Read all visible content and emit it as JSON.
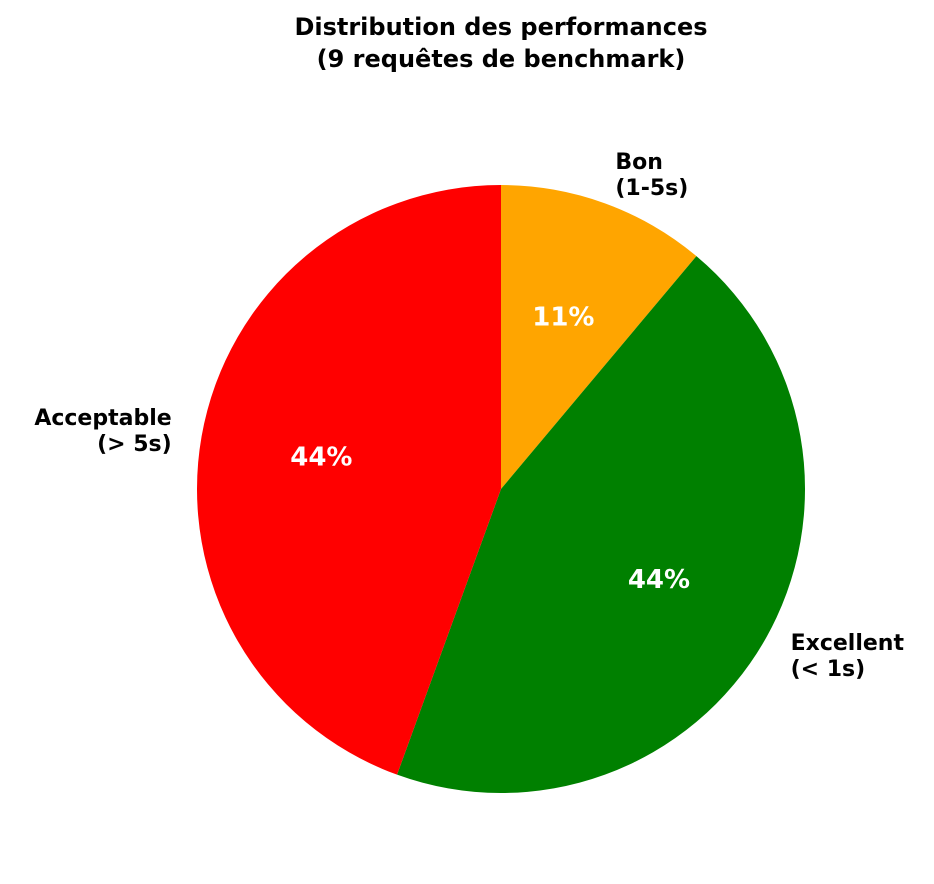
{
  "chart_data": {
    "type": "pie",
    "title_lines": [
      "Distribution des performances",
      "(9 requêtes de benchmark)"
    ],
    "slices": [
      {
        "label_lines": [
          "Bon",
          "(1-5s)"
        ],
        "count": 1,
        "pct_label": "11%",
        "color": "#ffa500"
      },
      {
        "label_lines": [
          "Excellent",
          "(< 1s)"
        ],
        "count": 4,
        "pct_label": "44%",
        "color": "#008000"
      },
      {
        "label_lines": [
          "Acceptable",
          "(> 5s)"
        ],
        "count": 4,
        "pct_label": "44%",
        "color": "#ff0000"
      }
    ],
    "start_angle_deg": 90,
    "direction": "clockwise"
  }
}
